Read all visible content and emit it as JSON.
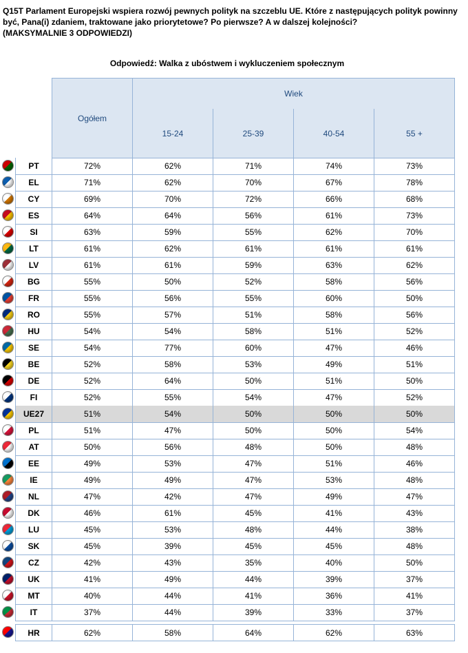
{
  "header": {
    "title_lines": [
      "Q15T Parlament Europejski wspiera rozwój pewnych polityk na szczeblu UE. Które z następujących polityk powinny",
      "być, Pana(i) zdaniem, traktowane jako priorytetowe? Po pierwsze? A w dalszej kolejności?",
      "(MAKSYMALNIE 3 ODPOWIEDZI)"
    ],
    "subtitle": "Odpowiedź: Walka z ubóstwem i wykluczeniem społecznym"
  },
  "table": {
    "total_header": "Ogółem",
    "group_header": "Wiek",
    "age_headers": [
      "15-24",
      "25-39",
      "40-54",
      "55 +"
    ],
    "rows": [
      [
        "PT",
        "72%",
        "62%",
        "71%",
        "74%",
        "73%"
      ],
      [
        "EL",
        "71%",
        "62%",
        "70%",
        "67%",
        "78%"
      ],
      [
        "CY",
        "69%",
        "70%",
        "72%",
        "66%",
        "68%"
      ],
      [
        "ES",
        "64%",
        "64%",
        "56%",
        "61%",
        "73%"
      ],
      [
        "SI",
        "63%",
        "59%",
        "55%",
        "62%",
        "70%"
      ],
      [
        "LT",
        "61%",
        "62%",
        "61%",
        "61%",
        "61%"
      ],
      [
        "LV",
        "61%",
        "61%",
        "59%",
        "63%",
        "62%"
      ],
      [
        "BG",
        "55%",
        "50%",
        "52%",
        "58%",
        "56%"
      ],
      [
        "FR",
        "55%",
        "56%",
        "55%",
        "60%",
        "50%"
      ],
      [
        "RO",
        "55%",
        "57%",
        "51%",
        "58%",
        "56%"
      ],
      [
        "HU",
        "54%",
        "54%",
        "58%",
        "51%",
        "52%"
      ],
      [
        "SE",
        "54%",
        "77%",
        "60%",
        "47%",
        "46%"
      ],
      [
        "BE",
        "52%",
        "58%",
        "53%",
        "49%",
        "51%"
      ],
      [
        "DE",
        "52%",
        "64%",
        "50%",
        "51%",
        "50%"
      ],
      [
        "FI",
        "52%",
        "55%",
        "54%",
        "47%",
        "52%"
      ],
      [
        "UE27",
        "51%",
        "54%",
        "50%",
        "50%",
        "50%"
      ],
      [
        "PL",
        "51%",
        "47%",
        "50%",
        "50%",
        "54%"
      ],
      [
        "AT",
        "50%",
        "56%",
        "48%",
        "50%",
        "48%"
      ],
      [
        "EE",
        "49%",
        "53%",
        "47%",
        "51%",
        "46%"
      ],
      [
        "IE",
        "49%",
        "49%",
        "47%",
        "53%",
        "48%"
      ],
      [
        "NL",
        "47%",
        "42%",
        "47%",
        "49%",
        "47%"
      ],
      [
        "DK",
        "46%",
        "61%",
        "45%",
        "41%",
        "43%"
      ],
      [
        "LU",
        "45%",
        "53%",
        "48%",
        "44%",
        "38%"
      ],
      [
        "SK",
        "45%",
        "39%",
        "45%",
        "45%",
        "48%"
      ],
      [
        "CZ",
        "42%",
        "43%",
        "35%",
        "40%",
        "50%"
      ],
      [
        "UK",
        "41%",
        "49%",
        "44%",
        "39%",
        "37%"
      ],
      [
        "MT",
        "40%",
        "44%",
        "41%",
        "36%",
        "41%"
      ],
      [
        "IT",
        "37%",
        "44%",
        "39%",
        "33%",
        "37%"
      ]
    ],
    "footer_rows": [
      [
        "HR",
        "62%",
        "58%",
        "64%",
        "62%",
        "63%"
      ]
    ]
  }
}
